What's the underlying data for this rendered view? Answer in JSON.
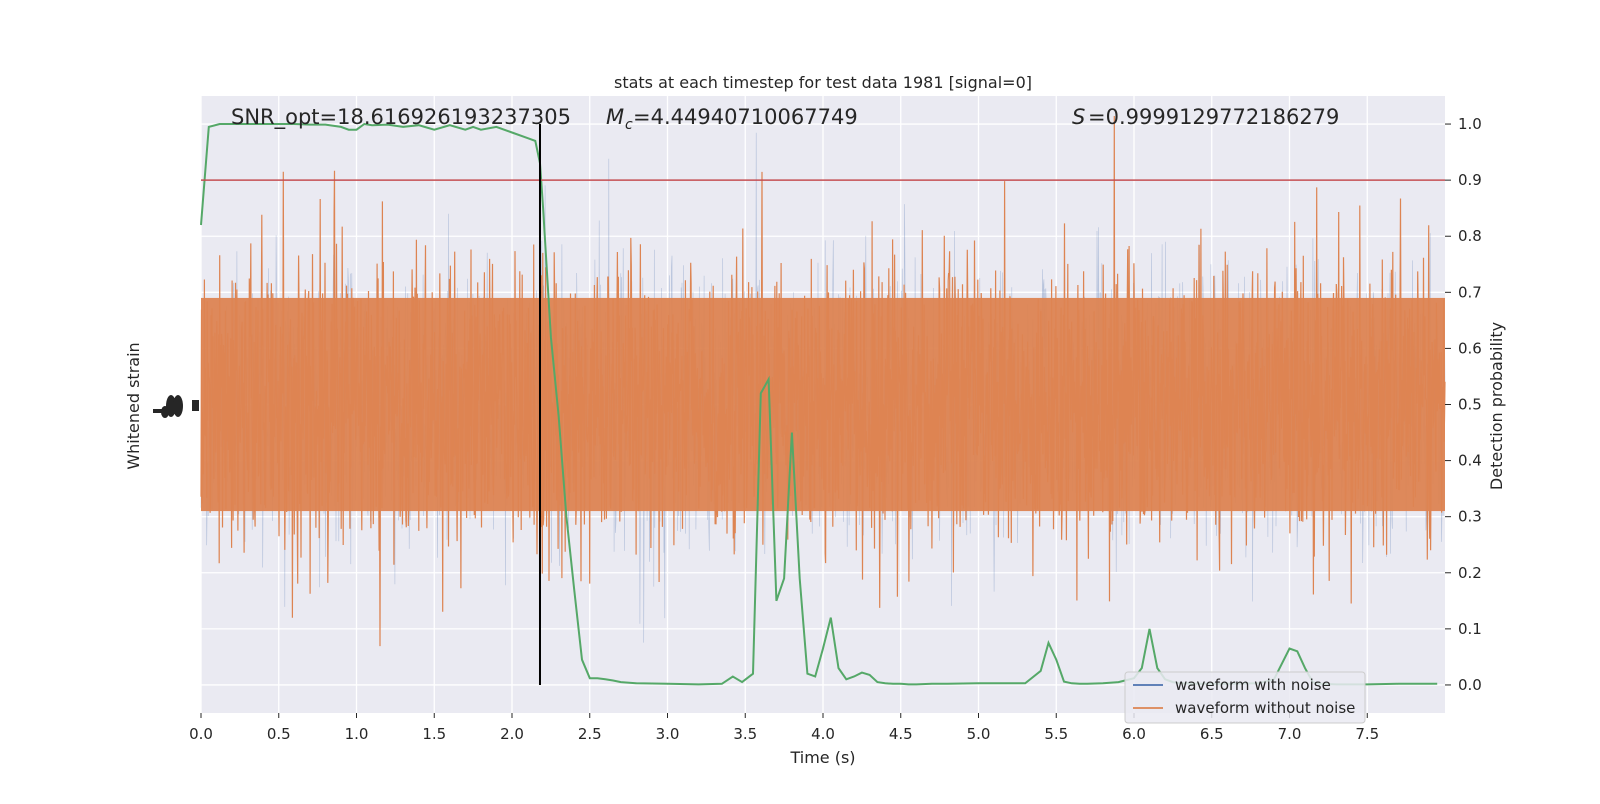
{
  "chart_data": {
    "type": "line",
    "title": "stats at each timestep for test data 1981 [signal=0]",
    "xlabel": "Time (s)",
    "ylabel_left": "Whitened strain",
    "ylabel_right": "Detection probability",
    "xlim": [
      0.0,
      8.0
    ],
    "ylim_right": [
      -0.05,
      1.05
    ],
    "x_ticks": [
      "0.0",
      "0.5",
      "1.0",
      "1.5",
      "2.0",
      "2.5",
      "3.0",
      "3.5",
      "4.0",
      "4.5",
      "5.0",
      "5.5",
      "6.0",
      "6.5",
      "7.0",
      "7.5"
    ],
    "y_ticks_right": [
      "0.0",
      "0.1",
      "0.2",
      "0.3",
      "0.4",
      "0.5",
      "0.6",
      "0.7",
      "0.8",
      "0.9",
      "1.0"
    ],
    "grid": true,
    "legend_position": "lower right",
    "annotations": {
      "snr": "SNR_opt=18.616926193237305",
      "mc": "=4.44940710067749",
      "s": "=0.9999129772186279"
    },
    "threshold": 0.9,
    "event_time": 2.18,
    "colors": {
      "with_noise": "#4c72b0",
      "without_noise": "#dd8452",
      "probability": "#55a868",
      "threshold": "#c44e52",
      "event_line": "#000000",
      "background": "#eaeaf2"
    },
    "series": [
      {
        "name": "waveform with noise",
        "kind": "strain-noise",
        "note": "dense noise trace rendered on the left (whitened strain) axis"
      },
      {
        "name": "waveform without noise",
        "kind": "strain-clean"
      },
      {
        "kind": "detection-probability",
        "x": [
          0.0,
          0.05,
          0.12,
          0.2,
          0.3,
          0.4,
          0.5,
          0.6,
          0.7,
          0.8,
          0.9,
          0.95,
          1.0,
          1.05,
          1.1,
          1.2,
          1.3,
          1.4,
          1.5,
          1.6,
          1.7,
          1.75,
          1.8,
          1.9,
          2.0,
          2.1,
          2.15,
          2.18,
          2.2,
          2.25,
          2.3,
          2.35,
          2.4,
          2.45,
          2.5,
          2.55,
          2.6,
          2.65,
          2.7,
          2.8,
          3.0,
          3.2,
          3.35,
          3.42,
          3.48,
          3.55,
          3.6,
          3.65,
          3.7,
          3.75,
          3.8,
          3.85,
          3.9,
          3.95,
          4.0,
          4.05,
          4.1,
          4.15,
          4.2,
          4.25,
          4.3,
          4.35,
          4.4,
          4.45,
          4.5,
          4.55,
          4.6,
          4.7,
          4.8,
          5.0,
          5.2,
          5.3,
          5.4,
          5.45,
          5.5,
          5.55,
          5.6,
          5.65,
          5.7,
          5.8,
          5.9,
          6.0,
          6.05,
          6.1,
          6.15,
          6.2,
          6.25,
          6.3,
          6.4,
          6.6,
          6.8,
          6.9,
          7.0,
          7.05,
          7.1,
          7.15,
          7.2,
          7.3,
          7.5,
          7.7,
          7.95
        ],
        "y": [
          0.82,
          0.995,
          1.0,
          1.0,
          1.0,
          1.0,
          1.0,
          1.0,
          0.999,
          0.999,
          0.995,
          0.99,
          0.99,
          1.0,
          0.998,
          0.999,
          0.995,
          0.998,
          0.99,
          0.998,
          0.99,
          0.995,
          0.99,
          0.995,
          0.985,
          0.975,
          0.97,
          0.93,
          0.85,
          0.62,
          0.48,
          0.3,
          0.17,
          0.045,
          0.012,
          0.012,
          0.01,
          0.008,
          0.005,
          0.003,
          0.002,
          0.001,
          0.002,
          0.015,
          0.005,
          0.02,
          0.52,
          0.545,
          0.15,
          0.19,
          0.45,
          0.19,
          0.02,
          0.015,
          0.065,
          0.12,
          0.03,
          0.01,
          0.015,
          0.022,
          0.018,
          0.005,
          0.003,
          0.002,
          0.002,
          0.001,
          0.001,
          0.002,
          0.002,
          0.003,
          0.003,
          0.003,
          0.025,
          0.075,
          0.045,
          0.006,
          0.003,
          0.002,
          0.002,
          0.003,
          0.005,
          0.012,
          0.03,
          0.1,
          0.03,
          0.01,
          0.005,
          0.003,
          0.002,
          0.002,
          0.003,
          0.01,
          0.065,
          0.06,
          0.03,
          0.005,
          0.002,
          0.001,
          0.001,
          0.002,
          0.002
        ]
      }
    ],
    "legend": [
      "waveform with noise",
      "waveform without noise"
    ]
  }
}
